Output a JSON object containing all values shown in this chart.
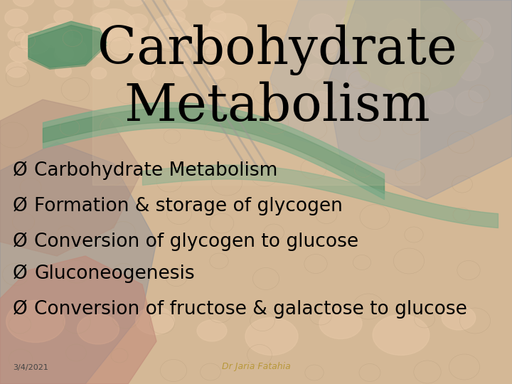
{
  "title_line1": "Carbohydrate",
  "title_line2": "Metabolism",
  "bullet_points": [
    "Carbohydrate Metabolism",
    "Formation & storage of glycogen",
    "Conversion of glycogen to glucose",
    "Gluconeogenesis",
    "Conversion of fructose & galactose to glucose"
  ],
  "bullet_symbol": "Ø",
  "date_text": "3/4/2021",
  "footer_text": "Dr Jaria Fatahia",
  "title_color": "#000000",
  "bullet_color": "#000000",
  "footer_color": "#b8983a",
  "date_color": "#444444",
  "title_fontsize": 52,
  "bullet_fontsize": 19,
  "footer_fontsize": 9,
  "date_fontsize": 8,
  "bg_base": "#d4b896",
  "bg_tissue_light": "#e8c9a8",
  "bg_tissue_dark": "#c09870",
  "bg_green": "#7aaa88",
  "bg_gray": "#a0a8b0",
  "bg_yellow": "#d4c870",
  "bg_shadow": "#707888"
}
